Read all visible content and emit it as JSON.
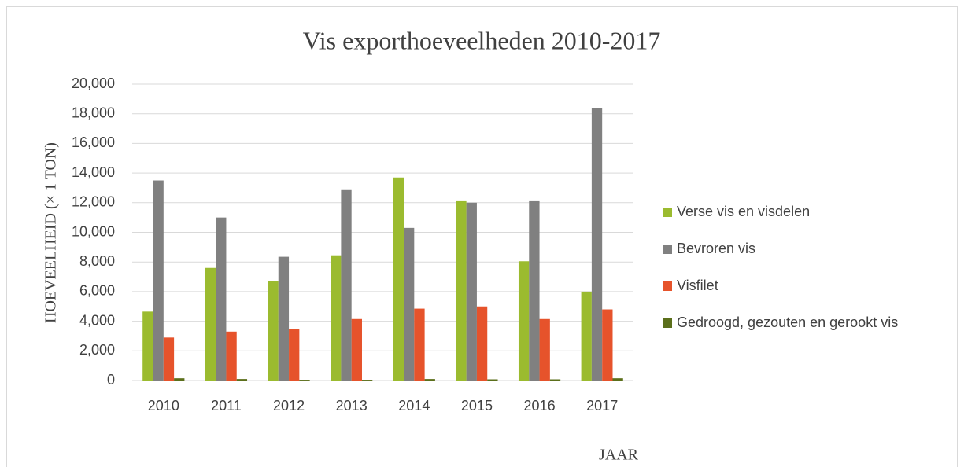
{
  "chart_data": {
    "type": "bar",
    "title": "Vis exporthoeveelheden 2010-2017",
    "x_label": "JAAR",
    "y_label": "HOEVEELHEID (× 1 TON)",
    "categories": [
      "2010",
      "2011",
      "2012",
      "2013",
      "2014",
      "2015",
      "2016",
      "2017"
    ],
    "series": [
      {
        "name": "Verse vis en visdelen",
        "color": "#9bbb2f",
        "values": [
          4650,
          7600,
          6700,
          8450,
          13700,
          12100,
          8050,
          6000
        ]
      },
      {
        "name": "Bevroren vis",
        "color": "#808080",
        "values": [
          13500,
          11000,
          8350,
          12850,
          10300,
          12000,
          12100,
          18400
        ]
      },
      {
        "name": "Visfilet",
        "color": "#e6532b",
        "values": [
          2900,
          3300,
          3450,
          4150,
          4850,
          5000,
          4150,
          4800
        ]
      },
      {
        "name": "Gedroogd, gezouten en gerookt vis",
        "color": "#5b6f1b",
        "values": [
          150,
          100,
          50,
          50,
          100,
          80,
          80,
          150
        ]
      }
    ],
    "ylim": [
      0,
      20000
    ],
    "yticks": [
      0,
      {
        "value": 2000,
        "label": "2,000"
      },
      {
        "value": 4000,
        "label": "4,000"
      },
      {
        "value": 6000,
        "label": "6,000"
      },
      {
        "value": 8000,
        "label": "8,000"
      },
      {
        "value": 10000,
        "label": "10,000"
      },
      {
        "value": 12000,
        "label": "12,000"
      },
      {
        "value": 14000,
        "label": "14,000"
      },
      {
        "value": 16000,
        "label": "16,000"
      },
      {
        "value": 18000,
        "label": "18,000"
      },
      {
        "value": 20000,
        "label": "20,000"
      }
    ],
    "grid": true,
    "legend": "right"
  }
}
